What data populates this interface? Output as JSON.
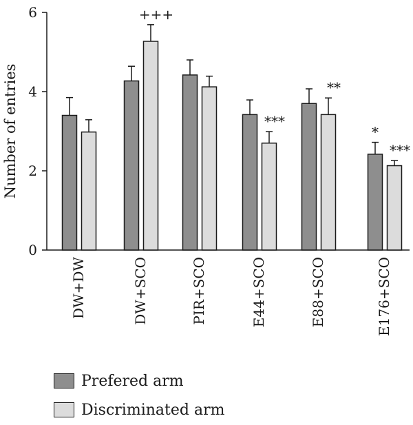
{
  "chart_data": {
    "type": "bar",
    "categories": [
      "DW+DW",
      "DW+SCO",
      "PIR+SCO",
      "E44+SCO",
      "E88+SCO",
      "E176+SCO"
    ],
    "series": [
      {
        "name": "Prefered arm",
        "values": [
          3.4,
          4.27,
          4.42,
          3.42,
          3.7,
          2.42
        ],
        "errors": [
          0.45,
          0.37,
          0.38,
          0.37,
          0.37,
          0.3
        ],
        "annotations": [
          "",
          "",
          "",
          "",
          "",
          "*"
        ],
        "color": "#8e8e8e"
      },
      {
        "name": "Discriminated arm",
        "values": [
          2.98,
          5.27,
          4.12,
          2.7,
          3.42,
          2.13
        ],
        "errors": [
          0.31,
          0.42,
          0.27,
          0.29,
          0.42,
          0.13
        ],
        "annotations": [
          "",
          "+++",
          "",
          "***",
          "**",
          "***"
        ],
        "color": "#dcdcdc"
      }
    ],
    "ylabel": "Number of entries",
    "xlabel": "",
    "ylim": [
      0,
      6
    ],
    "yticks": [
      0,
      2,
      4,
      6
    ],
    "grid": false,
    "legend_position": "bottom-left"
  }
}
